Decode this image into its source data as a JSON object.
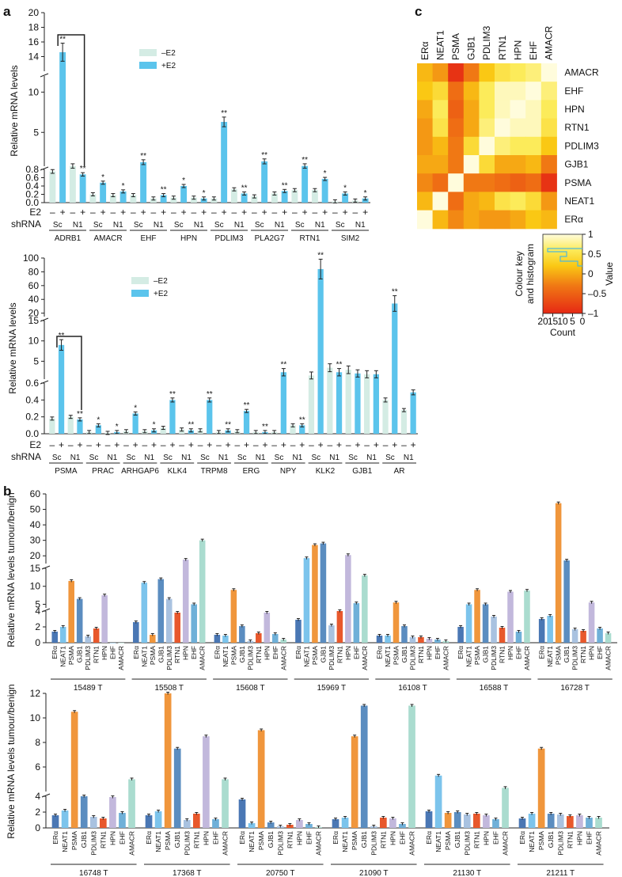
{
  "panels": {
    "a": "a",
    "b": "b",
    "c": "c"
  },
  "colors": {
    "minus_e2": "#d4ece4",
    "plus_e2": "#5bc4ec",
    "ERa": "#4a77b4",
    "NEAT1": "#7cc4ec",
    "PSMA": "#f0963c",
    "GJB1": "#5b8dc0",
    "PDLIM3": "#a9c2e0",
    "RTN1": "#e8582c",
    "HPN": "#c2b8dc",
    "EHF": "#6fb0d8",
    "AMACR": "#aadccf"
  },
  "chart_data": [
    {
      "id": "a1",
      "type": "bar",
      "title": "",
      "ylabel": "Relative mRNA levels",
      "legend": [
        "–E2",
        "+E2"
      ],
      "row_labels": [
        "E2",
        "shRNA"
      ],
      "e2_ticks": [
        "–",
        "+"
      ],
      "groups": [
        "ADRB1",
        "AMACR",
        "EHF",
        "HPN",
        "PDLIM3",
        "PLA2G7",
        "RTN1",
        "SIM2"
      ],
      "shrna_labels": [
        "Sc",
        "N1"
      ],
      "yticks_low": [
        "0.0",
        "0.2",
        "0.4",
        "0.6",
        "0.8"
      ],
      "yticks_mid": [
        "5",
        "10"
      ],
      "yticks_high": [
        "14",
        "16",
        "18",
        "20"
      ],
      "values": [
        [
          0.75,
          14.6,
          0.83,
          0.68
        ],
        [
          0.2,
          0.48,
          0.18,
          0.27
        ],
        [
          0.18,
          1.3,
          0.1,
          0.18
        ],
        [
          0.12,
          0.4,
          0.12,
          0.1
        ],
        [
          0.1,
          6.3,
          0.32,
          0.22
        ],
        [
          0.15,
          1.4,
          0.22,
          0.28
        ],
        [
          0.3,
          0.83,
          0.3,
          0.57
        ],
        [
          0.03,
          0.22,
          0.05,
          0.1
        ]
      ],
      "sig": [
        [
          "",
          "**",
          "",
          "**"
        ],
        [
          "",
          "*",
          "",
          "*"
        ],
        [
          "",
          "**",
          "",
          "**"
        ],
        [
          "",
          "*",
          "",
          "*"
        ],
        [
          "",
          "**",
          "",
          "**"
        ],
        [
          "",
          "**",
          "",
          "**"
        ],
        [
          "",
          "**",
          "",
          "*"
        ],
        [
          "",
          "*",
          "",
          "*"
        ]
      ]
    },
    {
      "id": "a2",
      "type": "bar",
      "title": "",
      "ylabel": "Relative mRNA levels",
      "legend": [
        "–E2",
        "+E2"
      ],
      "row_labels": [
        "E2",
        "shRNA"
      ],
      "e2_ticks": [
        "–",
        "+"
      ],
      "groups": [
        "PSMA",
        "PRAC",
        "ARHGAP6",
        "KLK4",
        "TRPM8",
        "ERG",
        "NPY",
        "KLK2",
        "GJB1",
        "AR"
      ],
      "shrna_labels": [
        "Sc",
        "N1"
      ],
      "yticks_low": [
        "0.0",
        "0.2",
        "0.4",
        "0.6"
      ],
      "yticks_mid": [
        "5",
        "10",
        "15"
      ],
      "yticks_high": [
        "20",
        "40",
        "60",
        "80",
        "100"
      ],
      "values": [
        [
          0.18,
          9.0,
          0.2,
          0.17
        ],
        [
          0.02,
          0.1,
          0.01,
          0.02
        ],
        [
          0.03,
          0.24,
          0.03,
          0.04
        ],
        [
          0.07,
          0.4,
          0.05,
          0.04
        ],
        [
          0.04,
          0.4,
          0.02,
          0.04
        ],
        [
          0.03,
          0.27,
          0.02,
          0.02
        ],
        [
          0.02,
          2.3,
          0.1,
          0.1
        ],
        [
          1.5,
          84,
          3.4,
          2.3
        ],
        [
          2.9,
          2.0,
          1.8,
          1.8
        ],
        [
          0.4,
          34,
          0.28,
          0.49
        ]
      ],
      "sig": [
        [
          "",
          "**",
          "",
          "**"
        ],
        [
          "",
          "*",
          "",
          "*"
        ],
        [
          "",
          "*",
          "",
          "*"
        ],
        [
          "",
          "**",
          "",
          "**"
        ],
        [
          "",
          "**",
          "",
          "**"
        ],
        [
          "",
          "**",
          "",
          "**"
        ],
        [
          "",
          "**",
          "",
          "**"
        ],
        [
          "",
          "**",
          "",
          "**"
        ],
        [
          "",
          "",
          "",
          ""
        ],
        [
          "",
          "**",
          "",
          ""
        ]
      ]
    },
    {
      "id": "b1",
      "type": "bar",
      "ylabel": "Relative mRNA levels tumour/benign",
      "genes": [
        "ERα",
        "NEAT1",
        "PSMA",
        "GJB1",
        "PDLIM3",
        "RTN1",
        "HPN",
        "EHF",
        "AMACR"
      ],
      "yticks_low": [
        "0",
        "2",
        "4"
      ],
      "yticks_mid": [
        "5",
        "10",
        "15"
      ],
      "yticks_high": [
        "20",
        "30",
        "40",
        "50",
        "60"
      ],
      "samples": [
        {
          "name": "15489 T",
          "values": [
            1.4,
            2.0,
            11.5,
            6.5,
            0.8,
            1.8,
            7.5,
            0,
            0
          ]
        },
        {
          "name": "15508 T",
          "values": [
            2.6,
            11.0,
            1.0,
            12.0,
            6.5,
            3.8,
            17.5,
            5.0,
            30.0
          ]
        },
        {
          "name": "15608 T",
          "values": [
            1.0,
            0.9,
            9.0,
            2.1,
            0.2,
            1.2,
            3.8,
            1.1,
            0.4
          ]
        },
        {
          "name": "15969 T",
          "values": [
            2.9,
            18.5,
            27.0,
            28.0,
            2.2,
            4.0,
            20.5,
            5.3,
            13.0
          ]
        },
        {
          "name": "16108 T",
          "values": [
            0.9,
            0.9,
            5.5,
            2.1,
            0.7,
            0.7,
            0.5,
            0.4,
            0.2
          ]
        },
        {
          "name": "16588 T",
          "values": [
            2.0,
            5.0,
            9.0,
            5.0,
            3.3,
            1.9,
            8.5,
            1.4,
            8.8
          ]
        },
        {
          "name": "16728 T",
          "values": [
            3.0,
            3.4,
            54.0,
            17.0,
            1.7,
            1.5,
            5.5,
            1.8,
            1.2
          ]
        }
      ]
    },
    {
      "id": "b2",
      "type": "bar",
      "ylabel": "Relative mRNA levels tumour/benign",
      "genes": [
        "ERα",
        "NEAT1",
        "PSMA",
        "GJB1",
        "PDLIM3",
        "RTN1",
        "HPN",
        "EHF",
        "AMACR"
      ],
      "yticks_low": [
        "0",
        "2",
        "4"
      ],
      "yticks_mid": [
        "6",
        "8",
        "10",
        "12"
      ],
      "samples": [
        {
          "name": "16748 T",
          "values": [
            1.6,
            2.2,
            10.5,
            4.0,
            1.4,
            1.2,
            3.9,
            1.9,
            5.0
          ]
        },
        {
          "name": "17368 T",
          "values": [
            1.6,
            2.1,
            12.0,
            7.5,
            1.0,
            1.8,
            8.5,
            1.1,
            5.0
          ]
        },
        {
          "name": "20750 T",
          "values": [
            3.6,
            0.6,
            9.0,
            0.7,
            0.2,
            0.4,
            1.0,
            0.5,
            0.1
          ]
        },
        {
          "name": "21090 T",
          "values": [
            1.1,
            1.3,
            8.5,
            11.0,
            0.2,
            1.3,
            1.2,
            0.5,
            11.0
          ]
        },
        {
          "name": "21130 T",
          "values": [
            2.1,
            5.3,
            1.9,
            2.0,
            1.7,
            1.8,
            1.6,
            1.1,
            4.3
          ]
        },
        {
          "name": "21211 T",
          "values": [
            1.2,
            1.8,
            7.5,
            1.8,
            1.7,
            1.5,
            1.6,
            1.3,
            1.3
          ]
        }
      ]
    },
    {
      "id": "c",
      "type": "heatmap",
      "columns": [
        "ERα",
        "NEAT1",
        "PSMA",
        "GJB1",
        "PDLIM3",
        "RTN1",
        "HPN",
        "EHF",
        "AMACR"
      ],
      "rows": [
        "AMACR",
        "EHF",
        "HPN",
        "RTN1",
        "PDLIM3",
        "GJB1",
        "PSMA",
        "NEAT1",
        "ERα"
      ],
      "matrix": [
        [
          0.55,
          0.45,
          0.05,
          0.35,
          0.6,
          0.75,
          0.8,
          0.85,
          1.0
        ],
        [
          0.6,
          0.7,
          0.3,
          0.55,
          0.8,
          0.95,
          0.95,
          1.0,
          0.85
        ],
        [
          0.5,
          0.8,
          0.25,
          0.5,
          0.8,
          0.95,
          1.0,
          0.95,
          0.8
        ],
        [
          0.45,
          0.75,
          0.3,
          0.5,
          0.85,
          1.0,
          0.95,
          0.95,
          0.75
        ],
        [
          0.45,
          0.55,
          0.35,
          0.7,
          1.0,
          0.85,
          0.8,
          0.8,
          0.6
        ],
        [
          0.5,
          0.5,
          0.35,
          1.0,
          0.7,
          0.5,
          0.5,
          0.55,
          0.35
        ],
        [
          0.4,
          0.3,
          1.0,
          0.35,
          0.35,
          0.3,
          0.25,
          0.3,
          0.05
        ],
        [
          0.55,
          1.0,
          0.3,
          0.5,
          0.55,
          0.75,
          0.8,
          0.7,
          0.45
        ],
        [
          1.0,
          0.55,
          0.4,
          0.5,
          0.45,
          0.45,
          0.5,
          0.6,
          0.55
        ]
      ],
      "colour_key": {
        "title": "Colour key and histogram",
        "value_label": "Value",
        "count_label": "Count",
        "value_ticks": [
          "1",
          "0.5",
          "0",
          "–0.5",
          "–1"
        ],
        "count_ticks": [
          "20",
          "15",
          "10",
          "5",
          "0"
        ]
      }
    }
  ]
}
